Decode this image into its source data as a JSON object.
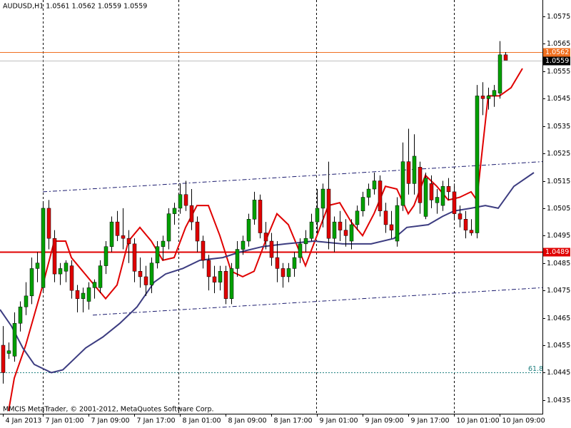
{
  "chart_data": {
    "type": "candlestick",
    "title": "AUDUSD,H1  1.0561 1.0562 1.0559 1.0559",
    "footer": "MMCIS MetaTrader, © 2001-2012, MetaQuotes Software Corp.",
    "categories": [
      "4 Jan 2013",
      null,
      null,
      null,
      null,
      null,
      null,
      "7 Jan 01:00",
      null,
      null,
      null,
      null,
      null,
      null,
      null,
      "7 Jan 09:00",
      null,
      null,
      null,
      null,
      null,
      null,
      null,
      "7 Jan 17:00",
      null,
      null,
      null,
      null,
      null,
      null,
      null,
      "8 Jan 01:00",
      null,
      null,
      null,
      null,
      null,
      null,
      null,
      "8 Jan 09:00",
      null,
      null,
      null,
      null,
      null,
      null,
      null,
      "8 Jan 17:00",
      null,
      null,
      null,
      null,
      null,
      null,
      null,
      "9 Jan 01:00",
      null,
      null,
      null,
      null,
      null,
      null,
      null,
      "9 Jan 09:00",
      null,
      null,
      null,
      null,
      null,
      null,
      null,
      "9 Jan 17:00",
      null,
      null,
      null,
      null,
      null,
      null,
      null,
      "10 Jan 01:00",
      null,
      null,
      null,
      null,
      null,
      null,
      null,
      "10 Jan 09:00",
      null
    ],
    "open": [
      1.0455,
      1.0452,
      1.0451,
      1.0463,
      1.0469,
      1.0473,
      1.0483,
      1.0476,
      1.0505,
      1.0494,
      1.0481,
      1.0482,
      1.0484,
      1.0475,
      1.0472,
      1.0471,
      1.0476,
      1.0476,
      1.0484,
      1.0491,
      1.05,
      1.0495,
      1.0494,
      1.0492,
      1.0482,
      1.048,
      1.0477,
      1.0485,
      1.0491,
      1.0493,
      1.0503,
      1.0505,
      1.051,
      1.0506,
      1.05,
      1.0493,
      1.0486,
      1.048,
      1.0478,
      1.0482,
      1.0472,
      1.0483,
      1.049,
      1.0493,
      1.0501,
      1.0508,
      1.0496,
      1.0493,
      1.0487,
      1.0483,
      1.048,
      1.0483,
      1.0487,
      1.0492,
      1.0494,
      1.05,
      1.0505,
      1.0512,
      1.0494,
      1.05,
      1.0497,
      1.0493,
      1.0499,
      1.0504,
      1.0509,
      1.0512,
      1.0515,
      1.0504,
      1.0499,
      1.0493,
      1.0506,
      1.0522,
      1.0514,
      1.052,
      1.0502,
      1.0514,
      1.0507,
      1.0506,
      1.0513,
      1.0511,
      1.0503,
      1.0501,
      1.0497,
      1.0496,
      1.0546,
      1.0545,
      1.0546,
      1.0547,
      1.0561
    ],
    "high": [
      1.0462,
      1.0456,
      1.0467,
      1.0471,
      1.0478,
      1.0487,
      1.0489,
      1.0507,
      1.0508,
      1.0497,
      1.0485,
      1.0486,
      1.0486,
      1.0477,
      1.0476,
      1.0478,
      1.0479,
      1.0486,
      1.0493,
      1.0502,
      1.0504,
      1.0505,
      1.0497,
      1.0494,
      1.0487,
      1.0484,
      1.0487,
      1.0493,
      1.0495,
      1.0505,
      1.0507,
      1.0514,
      1.0515,
      1.0512,
      1.0502,
      1.0495,
      1.0488,
      1.0484,
      1.0484,
      1.0484,
      1.0485,
      1.0493,
      1.0495,
      1.0503,
      1.0511,
      1.051,
      1.05,
      1.0496,
      1.0493,
      1.0485,
      1.0485,
      1.0489,
      1.0494,
      1.0497,
      1.0503,
      1.0512,
      1.0514,
      1.0522,
      1.0502,
      1.0504,
      1.0501,
      1.0501,
      1.0506,
      1.0511,
      1.0514,
      1.0518,
      1.0517,
      1.0507,
      1.0504,
      1.0509,
      1.0529,
      1.0534,
      1.0532,
      1.0522,
      1.0518,
      1.0517,
      1.0512,
      1.0515,
      1.0516,
      1.0514,
      1.0506,
      1.0504,
      1.0501,
      1.055,
      1.0551,
      1.0549,
      1.055,
      1.0566,
      1.0562
    ],
    "low": [
      1.0441,
      1.045,
      1.0449,
      1.046,
      1.0466,
      1.047,
      1.0478,
      1.0474,
      1.049,
      1.0478,
      1.0477,
      1.0478,
      1.0472,
      1.0467,
      1.0467,
      1.0468,
      1.0472,
      1.0474,
      1.0481,
      1.0489,
      1.0493,
      1.049,
      1.0485,
      1.0478,
      1.0476,
      1.0473,
      1.0474,
      1.0483,
      1.0486,
      1.049,
      1.0499,
      1.0503,
      1.0504,
      1.0497,
      1.0489,
      1.0483,
      1.0475,
      1.0474,
      1.0475,
      1.047,
      1.047,
      1.048,
      1.0488,
      1.0491,
      1.0499,
      1.0494,
      1.049,
      1.0484,
      1.0478,
      1.0476,
      1.0478,
      1.048,
      1.0485,
      1.0489,
      1.0493,
      1.0496,
      1.0498,
      1.049,
      1.0489,
      1.0493,
      1.0491,
      1.049,
      1.0497,
      1.0502,
      1.0506,
      1.051,
      1.0502,
      1.0496,
      1.0494,
      1.0491,
      1.0504,
      1.051,
      1.051,
      1.0503,
      1.0501,
      1.0505,
      1.0503,
      1.0504,
      1.0508,
      1.0501,
      1.0498,
      1.0494,
      1.0495,
      1.0494,
      1.0539,
      1.0541,
      1.0542,
      1.0545,
      1.0559
    ],
    "close": [
      1.0445,
      1.0453,
      1.0463,
      1.0469,
      1.0473,
      1.0483,
      1.0485,
      1.0505,
      1.0494,
      1.0481,
      1.0483,
      1.0485,
      1.0475,
      1.0472,
      1.0474,
      1.0476,
      1.0478,
      1.0484,
      1.0491,
      1.05,
      1.0495,
      1.0494,
      1.0492,
      1.0482,
      1.048,
      1.0477,
      1.0485,
      1.0491,
      1.0493,
      1.0503,
      1.0505,
      1.051,
      1.0506,
      1.05,
      1.0493,
      1.0486,
      1.048,
      1.0478,
      1.0482,
      1.0472,
      1.0483,
      1.049,
      1.0493,
      1.0501,
      1.0508,
      1.0496,
      1.0493,
      1.0487,
      1.0483,
      1.048,
      1.0483,
      1.0487,
      1.0492,
      1.0494,
      1.05,
      1.0505,
      1.0512,
      1.0494,
      1.05,
      1.0497,
      1.0495,
      1.0499,
      1.0504,
      1.0509,
      1.0512,
      1.0515,
      1.0504,
      1.0499,
      1.0497,
      1.0506,
      1.0522,
      1.0514,
      1.0524,
      1.0507,
      1.0516,
      1.0508,
      1.0509,
      1.0513,
      1.0511,
      1.0503,
      1.0501,
      1.0497,
      1.0496,
      1.0546,
      1.0545,
      1.0546,
      1.0548,
      1.0561,
      1.0559
    ],
    "up_color": "#00a000",
    "down_color": "#e00000",
    "wick_color": "#000000",
    "xlim": [
      -0.5,
      94.5
    ],
    "ylim": [
      1.043,
      1.0581
    ],
    "yticks": [
      1.0575,
      1.0565,
      1.0555,
      1.0545,
      1.0535,
      1.0525,
      1.0515,
      1.0505,
      1.0495,
      1.0485,
      1.0475,
      1.0465,
      1.0455,
      1.0445,
      1.0435
    ],
    "series": [
      {
        "color": "#e00000",
        "dash": false,
        "x": [
          1,
          2,
          4,
          7,
          8,
          9,
          11,
          12,
          14,
          16,
          18,
          20,
          22,
          24,
          26,
          28,
          30,
          32,
          34,
          36,
          38,
          40,
          42,
          44,
          46,
          48,
          50,
          52,
          53,
          55,
          57,
          59,
          61,
          63,
          65,
          67,
          69,
          71,
          72,
          74,
          76,
          78,
          80,
          82,
          83,
          85,
          87,
          89,
          91
        ],
        "values": [
          1.0431,
          1.0443,
          1.0455,
          1.0477,
          1.0485,
          1.0493,
          1.0493,
          1.0487,
          1.0482,
          1.0477,
          1.0472,
          1.0477,
          1.0493,
          1.0498,
          1.0493,
          1.0486,
          1.0487,
          1.0498,
          1.0506,
          1.0506,
          1.0495,
          1.0482,
          1.048,
          1.0482,
          1.0493,
          1.0503,
          1.0499,
          1.0489,
          1.0484,
          1.0495,
          1.0506,
          1.0507,
          1.05,
          1.0495,
          1.0503,
          1.0513,
          1.0512,
          1.0503,
          1.0506,
          1.0517,
          1.0513,
          1.0508,
          1.0509,
          1.0511,
          1.0508,
          1.0546,
          1.0546,
          1.0549,
          1.0556
        ]
      },
      {
        "color": "#3c3c80",
        "dash": false,
        "x": [
          -0.5,
          1.5,
          3.5,
          5.5,
          8.5,
          10.5,
          12.5,
          14.5,
          17.5,
          20.5,
          23.5,
          26.5,
          28.5,
          31.5,
          34.5,
          38.5,
          41.5,
          45.5,
          49.5,
          54.5,
          59.5,
          64.5,
          68.5,
          70.75,
          74.5,
          77,
          79,
          82,
          84.5,
          86.75,
          89.5,
          93
        ],
        "values": [
          1.0468,
          1.0462,
          1.0454,
          1.0448,
          1.0445,
          1.0446,
          1.045,
          1.0454,
          1.0458,
          1.0463,
          1.0469,
          1.0478,
          1.0481,
          1.0483,
          1.0486,
          1.0487,
          1.0489,
          1.0491,
          1.0492,
          1.0493,
          1.0492,
          1.0492,
          1.0494,
          1.0498,
          1.0499,
          1.0502,
          1.0504,
          1.0505,
          1.0506,
          1.0505,
          1.0513,
          1.0518
        ]
      },
      {
        "color": "#1a1a6e",
        "dash": true,
        "x": [
          7,
          94.5
        ],
        "values": [
          1.0511,
          1.0522
        ]
      },
      {
        "color": "#1a1a6e",
        "dash": true,
        "x": [
          15.75,
          94.5
        ],
        "values": [
          1.0466,
          1.0476
        ]
      }
    ],
    "hlines": [
      {
        "value": 1.0562,
        "color": "#f07020",
        "tag": true
      },
      {
        "value": 1.0559,
        "color": "#c0c0c0",
        "tag": true
      },
      {
        "value": 1.0489,
        "color": "#e00000",
        "tag": true
      },
      {
        "value": 1.0445,
        "color": "#208080",
        "label": "61.8"
      }
    ]
  }
}
